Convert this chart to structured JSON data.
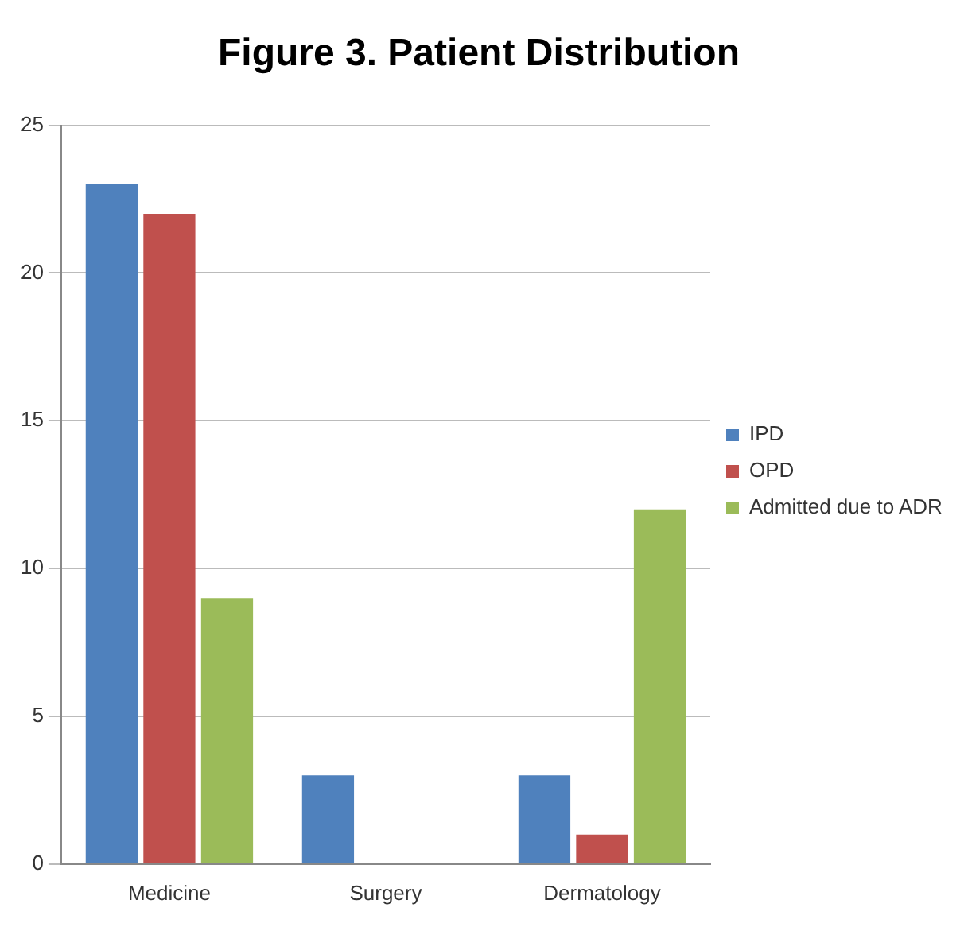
{
  "chart_data": {
    "type": "bar",
    "title": "Figure 3. Patient Distribution",
    "categories": [
      "Medicine",
      "Surgery",
      "Dermatology"
    ],
    "series": [
      {
        "name": "IPD",
        "color": "#4f81bd",
        "values": [
          23,
          3,
          3
        ]
      },
      {
        "name": "OPD",
        "color": "#c0504d",
        "values": [
          22,
          0,
          1
        ]
      },
      {
        "name": "Admitted due to ADR",
        "color": "#9bbb59",
        "values": [
          9,
          0,
          12
        ]
      }
    ],
    "ylim": [
      0,
      25
    ],
    "yticks": [
      0,
      5,
      10,
      15,
      20,
      25
    ],
    "grid": "y",
    "legend": "right"
  }
}
